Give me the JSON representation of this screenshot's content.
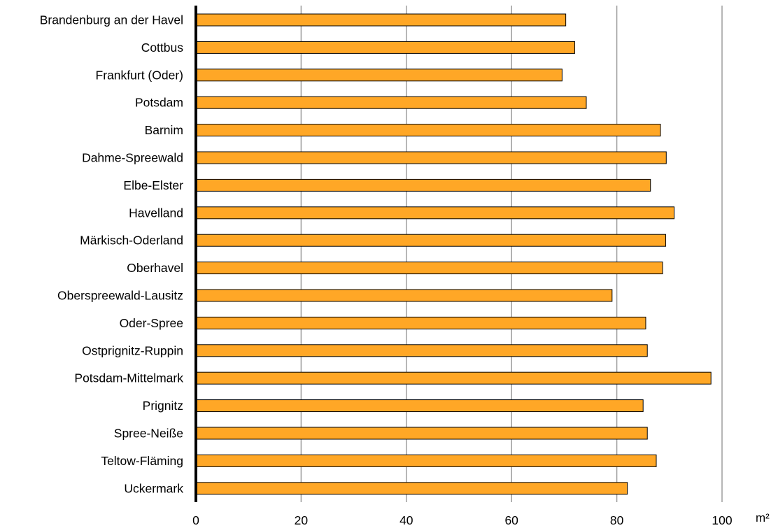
{
  "chart_data": {
    "type": "bar",
    "orientation": "horizontal",
    "categories": [
      "Brandenburg an der Havel",
      "Cottbus",
      "Frankfurt (Oder)",
      "Potsdam",
      "Barnim",
      "Dahme-Spreewald",
      "Elbe-Elster",
      "Havelland",
      "Märkisch-Oderland",
      "Oberhavel",
      "Oberspreewald-Lausitz",
      "Oder-Spree",
      "Ostprignitz-Ruppin",
      "Potsdam-Mittelmark",
      "Prignitz",
      "Spree-Neiße",
      "Teltow-Fläming",
      "Uckermark"
    ],
    "values": [
      70.3,
      72.0,
      69.6,
      74.2,
      88.3,
      89.4,
      86.4,
      90.9,
      89.3,
      88.7,
      79.1,
      85.5,
      85.8,
      97.9,
      85.0,
      85.8,
      87.5,
      82.0
    ],
    "xlim": [
      0,
      100
    ],
    "xticks": [
      0,
      20,
      40,
      60,
      80,
      100
    ],
    "unit": "m²",
    "title": "",
    "xlabel": "",
    "ylabel": "",
    "grid": "vertical",
    "bar_color": "#FFA726",
    "bar_stroke": "#000000",
    "grid_color": "#9e9e9e"
  }
}
